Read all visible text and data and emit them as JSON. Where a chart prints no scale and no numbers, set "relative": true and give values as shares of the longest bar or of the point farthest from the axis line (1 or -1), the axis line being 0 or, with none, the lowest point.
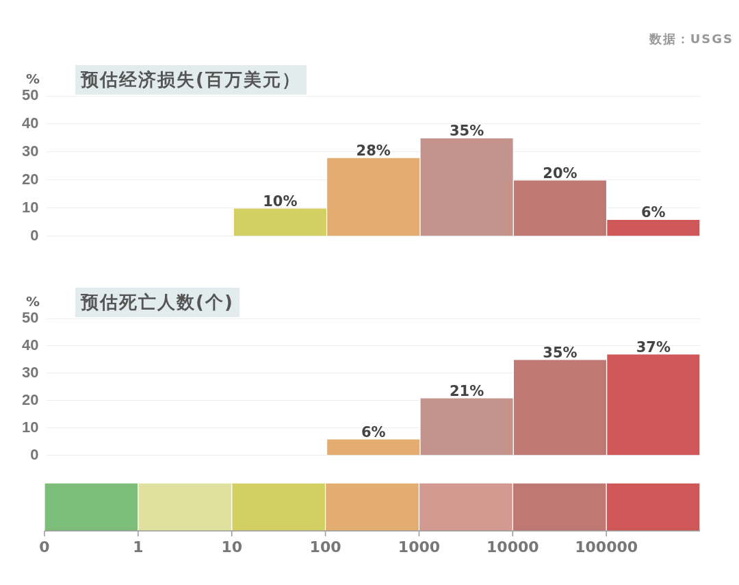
{
  "chart_data": [
    {
      "type": "bar",
      "title": "预估经济损失(百万美元）",
      "ylabel": "%",
      "categories": [
        null,
        null,
        null,
        null,
        null,
        null,
        null
      ],
      "values": [
        null,
        null,
        10,
        28,
        35,
        20,
        6
      ],
      "colors": [
        "#7dbd7a",
        "#e1e19e",
        "#d3d063",
        "#e3ad72",
        "#c4948c",
        "#c07872",
        "#d05757"
      ],
      "value_labels": [
        null,
        null,
        "10%",
        "28%",
        "35%",
        "20%",
        "6%"
      ],
      "ylim": [
        0,
        50
      ],
      "yticks": [
        0,
        10,
        20,
        30,
        40,
        50
      ],
      "grid": "y",
      "tick_labels": "y",
      "annotations": [
        "数据：USGS"
      ]
    },
    {
      "type": "bar",
      "title": "预估死亡人数(个)",
      "ylabel": "%",
      "categories": [
        null,
        null,
        null,
        null,
        null,
        null,
        null
      ],
      "values": [
        null,
        null,
        null,
        6,
        21,
        35,
        37
      ],
      "colors": [
        "#7dbd7a",
        "#e1e19e",
        "#d3d063",
        "#e3ad72",
        "#c4948c",
        "#c07872",
        "#d05757"
      ],
      "value_labels": [
        null,
        null,
        null,
        "6%",
        "21%",
        "35%",
        "37%"
      ],
      "ylim": [
        0,
        50
      ],
      "yticks": [
        0,
        10,
        20,
        30,
        40,
        50
      ],
      "grid": "y",
      "tick_labels": "y"
    },
    {
      "type": "bar",
      "relative": true,
      "categories": [
        null,
        null,
        null,
        null,
        null,
        null,
        null
      ],
      "values": [
        1,
        1,
        1,
        1,
        1,
        1,
        1
      ],
      "colors": [
        "#7dbd7a",
        "#e1e19e",
        "#d3d063",
        "#e3ad72",
        "#d49990",
        "#c07872",
        "#d05757"
      ],
      "tick_labels": false,
      "annotations": [
        "0",
        "1",
        "10",
        "100",
        "1000",
        "10000",
        "100000"
      ]
    }
  ]
}
